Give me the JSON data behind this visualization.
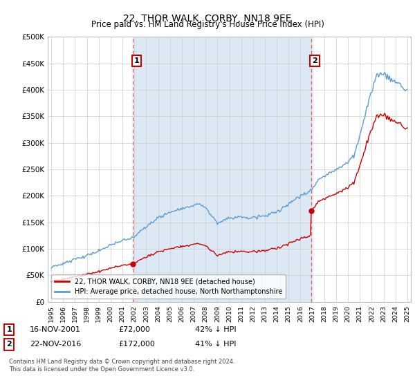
{
  "title": "22, THOR WALK, CORBY, NN18 9EE",
  "subtitle": "Price paid vs. HM Land Registry's House Price Index (HPI)",
  "ylim": [
    0,
    500000
  ],
  "yticks": [
    0,
    50000,
    100000,
    150000,
    200000,
    250000,
    300000,
    350000,
    400000,
    450000,
    500000
  ],
  "ytick_labels": [
    "£0",
    "£50K",
    "£100K",
    "£150K",
    "£200K",
    "£250K",
    "£300K",
    "£350K",
    "£400K",
    "£450K",
    "£500K"
  ],
  "x_start_year": 1995,
  "x_end_year": 2025,
  "event1_year": 2001.88,
  "event1_price": 72000,
  "event1_label": "1",
  "event1_date": "16-NOV-2001",
  "event1_amount": "£72,000",
  "event1_hpi": "42% ↓ HPI",
  "event2_year": 2016.89,
  "event2_price": 172000,
  "event2_label": "2",
  "event2_date": "22-NOV-2016",
  "event2_amount": "£172,000",
  "event2_hpi": "41% ↓ HPI",
  "red_line_color": "#cc0000",
  "blue_line_color": "#5b9bd5",
  "shade_color": "#dce9f5",
  "dashed_line_color": "#e06060",
  "legend_red_label": "22, THOR WALK, CORBY, NN18 9EE (detached house)",
  "legend_blue_label": "HPI: Average price, detached house, North Northamptonshire",
  "footer_line1": "Contains HM Land Registry data © Crown copyright and database right 2024.",
  "footer_line2": "This data is licensed under the Open Government Licence v3.0."
}
